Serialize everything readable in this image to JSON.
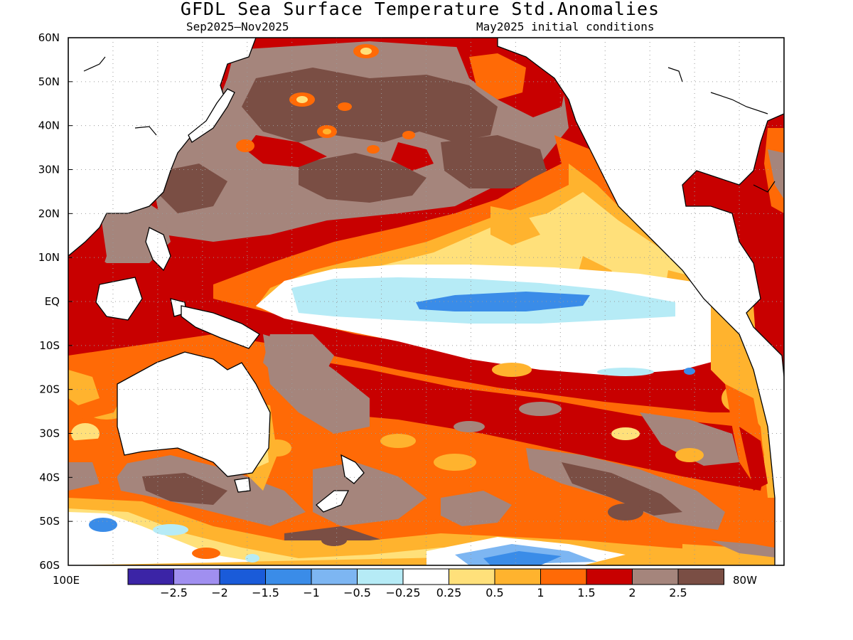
{
  "title": "GFDL Sea Surface Temperature Std.Anomalies",
  "subtitle_left": "Sep2025–Nov2025",
  "subtitle_right": "May2025 initial conditions",
  "lat_labels": [
    "60N",
    "50N",
    "40N",
    "30N",
    "20N",
    "10N",
    "EQ",
    "10S",
    "20S",
    "30S",
    "40S",
    "50S",
    "60S"
  ],
  "lon_left": "100E",
  "lon_right": "80W",
  "colorbar": {
    "colors": [
      "#3b24a6",
      "#a08ff0",
      "#1a5bd9",
      "#3a8ce8",
      "#7db6f2",
      "#b6ebf6",
      "#ffffff",
      "#ffe07a",
      "#ffb32e",
      "#ff6a06",
      "#c80000",
      "#a5857c",
      "#7a4e44"
    ],
    "labels": [
      "−2.5",
      "−2",
      "−1.5",
      "−1",
      "−0.5",
      "−0.25",
      "0.25",
      "0.5",
      "1",
      "1.5",
      "2",
      "2.5"
    ]
  }
}
